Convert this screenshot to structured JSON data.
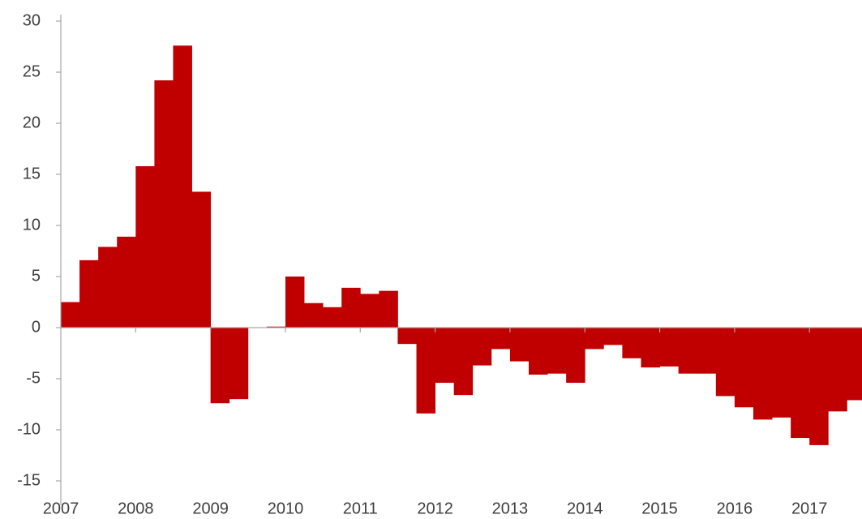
{
  "chart_data": {
    "type": "bar",
    "categories": [
      "2007",
      null,
      null,
      null,
      "2008",
      null,
      null,
      null,
      "2009",
      null,
      null,
      null,
      "2010",
      null,
      null,
      null,
      "2011",
      null,
      null,
      null,
      "2012",
      null,
      null,
      null,
      "2013",
      null,
      null,
      null,
      "2014",
      null,
      null,
      null,
      "2015",
      null,
      null,
      null,
      "2016",
      null,
      null,
      null,
      "2017",
      null,
      null
    ],
    "values": [
      2.5,
      6.6,
      7.9,
      8.9,
      15.8,
      24.2,
      27.6,
      13.3,
      -7.4,
      -7.0,
      0.0,
      0.1,
      5.0,
      2.4,
      2.0,
      3.9,
      3.3,
      3.6,
      -1.6,
      -8.4,
      -5.4,
      -6.6,
      -3.7,
      -2.1,
      -3.3,
      -4.6,
      -4.5,
      -5.4,
      -2.1,
      -1.7,
      -3.0,
      -3.9,
      -3.8,
      -4.5,
      -4.5,
      -6.7,
      -7.8,
      -9.0,
      -8.8,
      -10.8,
      -11.5,
      -8.2,
      -7.1
    ],
    "color": "#c00000",
    "ylim": [
      -15,
      30
    ],
    "yticks": [
      -15,
      -10,
      -5,
      0,
      5,
      10,
      15,
      20,
      25,
      30
    ],
    "grid": false
  }
}
